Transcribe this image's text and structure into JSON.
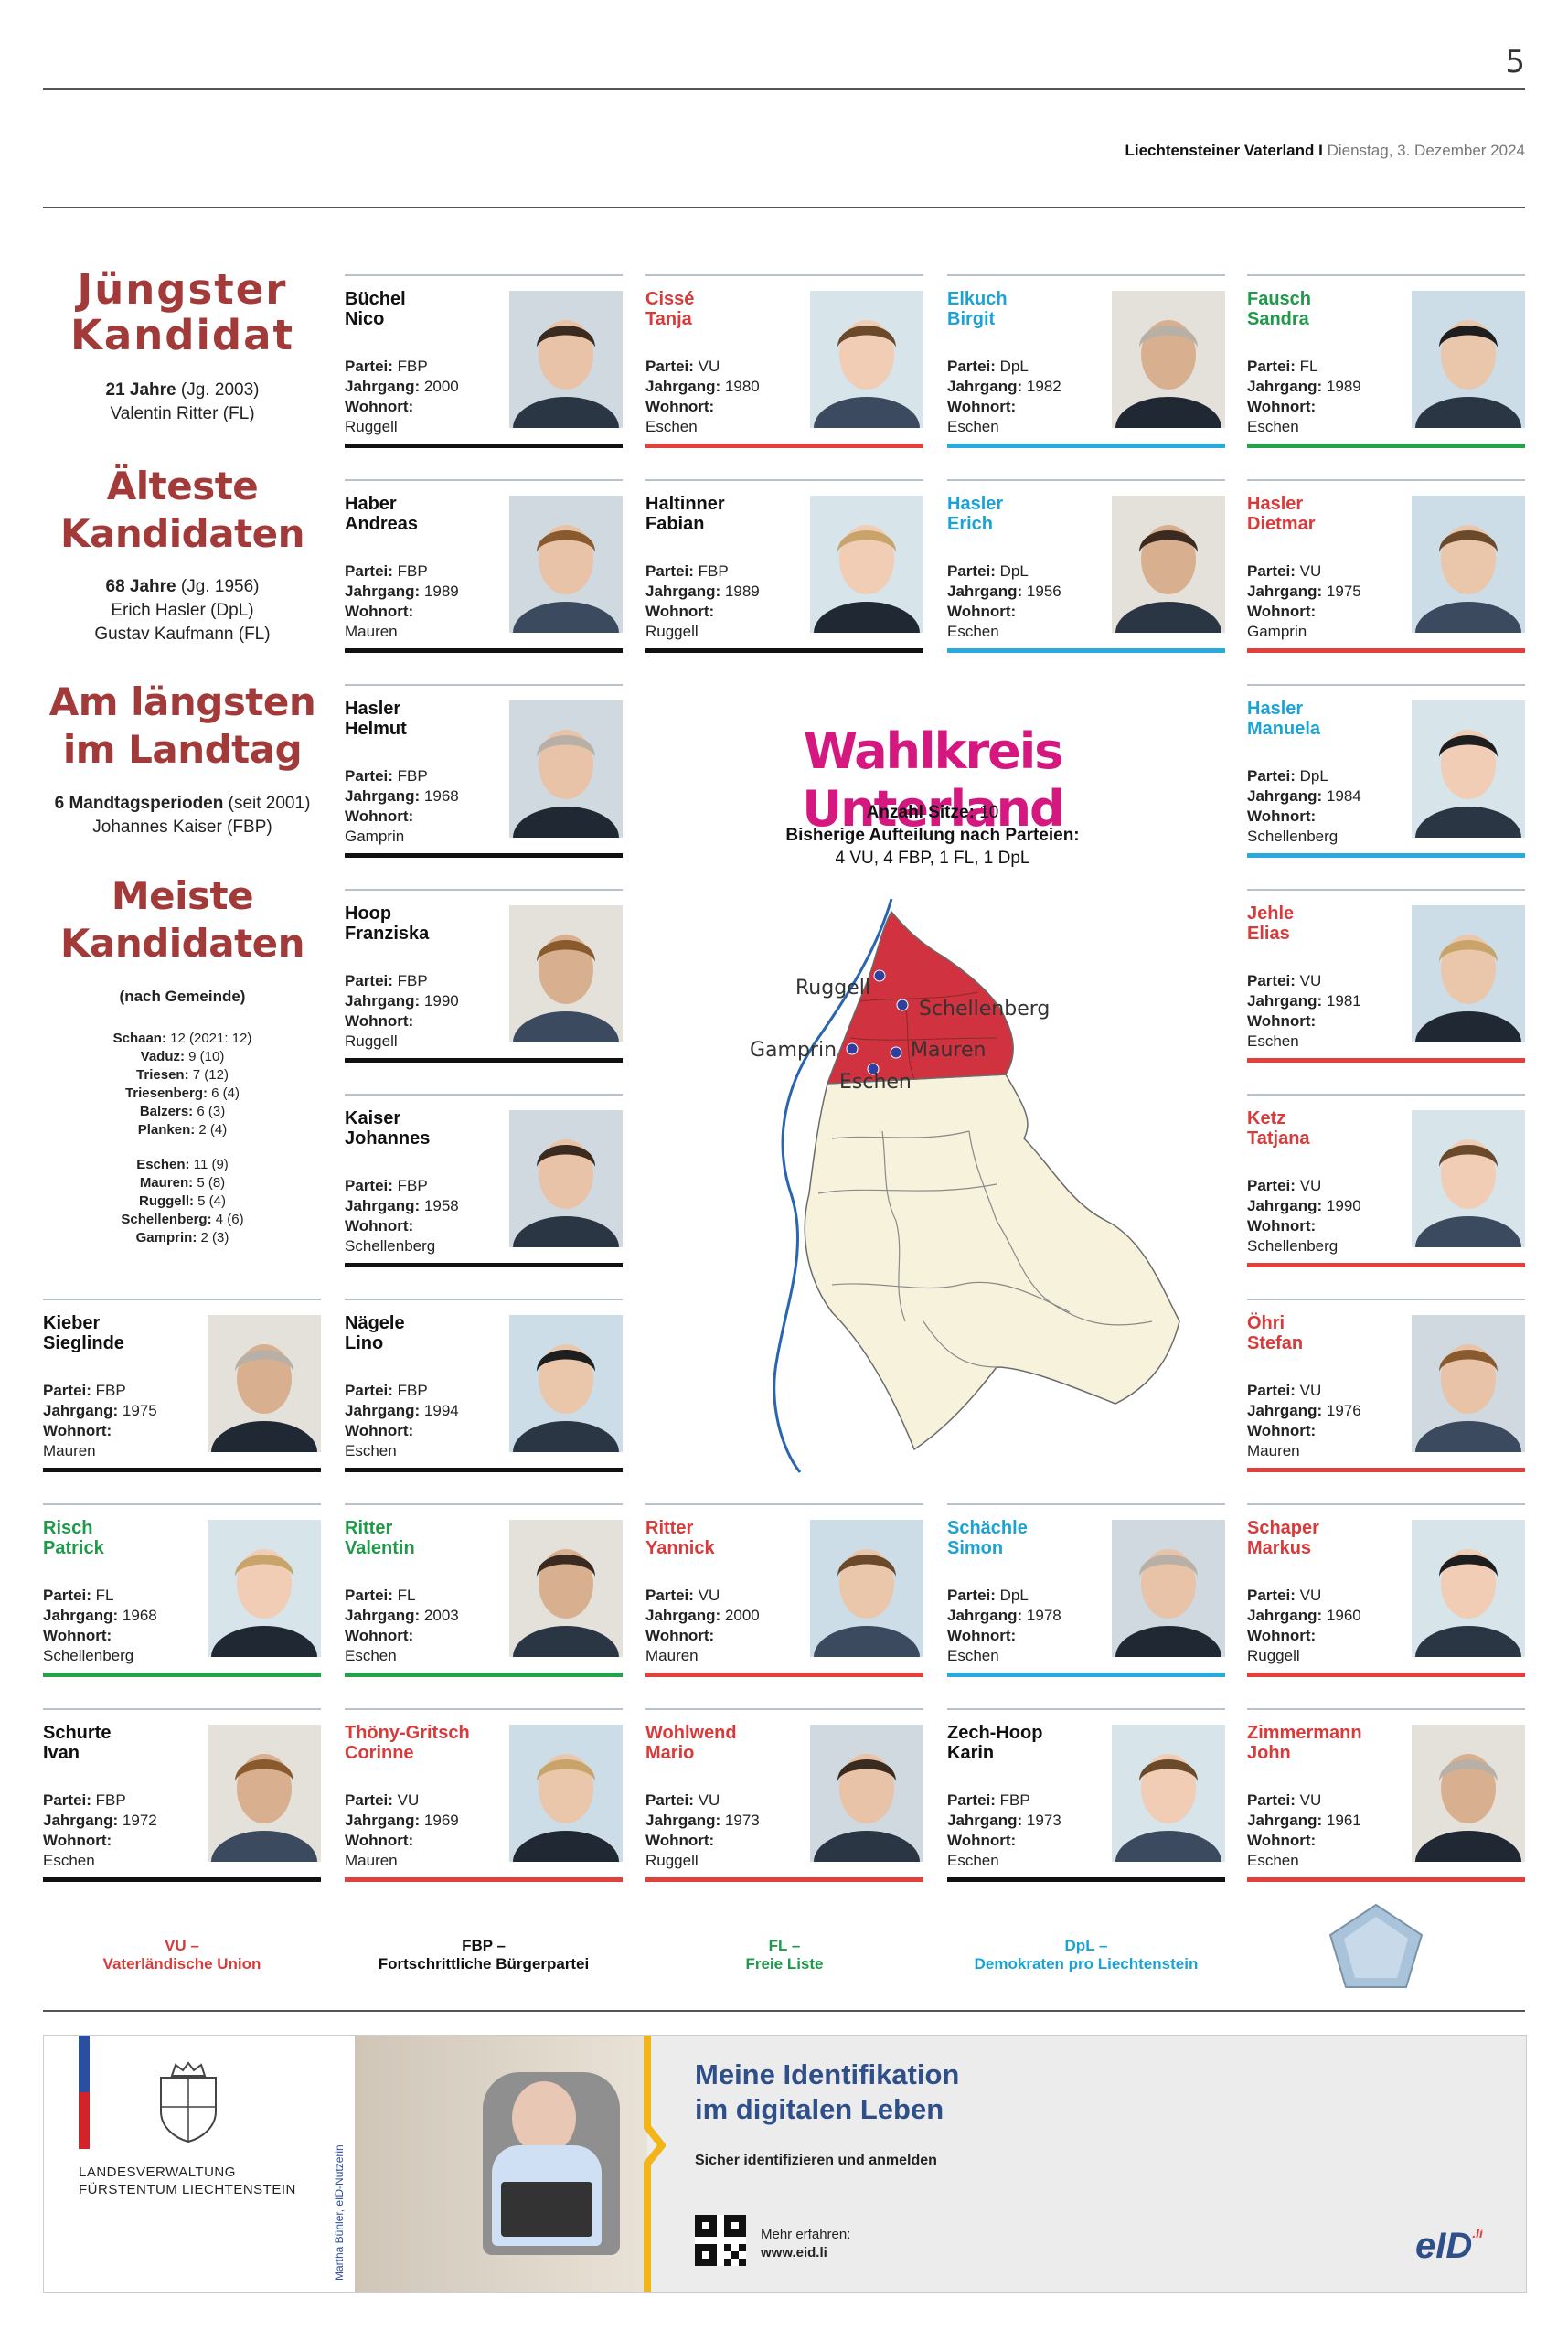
{
  "header": {
    "page_number": "5",
    "newspaper": "Liechtensteiner Vaterland",
    "separator": "I",
    "date": "Dienstag, 3. Dezember 2024"
  },
  "stats": {
    "youngest": {
      "title_line1": "Jüngster",
      "title_line2": "Kandidat",
      "value": "21 Jahre",
      "detail": "(Jg. 2003)",
      "name": "Valentin Ritter (FL)"
    },
    "oldest": {
      "title_line1": "Älteste",
      "title_line2": "Kandidaten",
      "value": "68 Jahre",
      "detail": "(Jg. 1956)",
      "name1": "Erich Hasler (DpL)",
      "name2": "Gustav Kaufmann (FL)"
    },
    "longest": {
      "title_line1": "Am längsten",
      "title_line2": "im Landtag",
      "value": "6 Mandtagsperioden",
      "detail": "(seit 2001)",
      "name": "Johannes Kaiser (FBP)"
    },
    "most": {
      "title_line1": "Meiste",
      "title_line2": "Kandidaten",
      "subtitle": "(nach Gemeinde)",
      "oberland": [
        {
          "name": "Schaan:",
          "value": "12 (2021: 12)"
        },
        {
          "name": "Vaduz:",
          "value": "9 (10)"
        },
        {
          "name": "Triesen:",
          "value": "7 (12)"
        },
        {
          "name": "Triesenberg:",
          "value": "6 (4)"
        },
        {
          "name": "Balzers:",
          "value": "6 (3)"
        },
        {
          "name": "Planken:",
          "value": "2 (4)"
        }
      ],
      "unterland": [
        {
          "name": "Eschen:",
          "value": "11 (9)"
        },
        {
          "name": "Mauren:",
          "value": "5 (8)"
        },
        {
          "name": "Ruggell:",
          "value": "5 (4)"
        },
        {
          "name": "Schellenberg:",
          "value": "4 (6)"
        },
        {
          "name": "Gamprin:",
          "value": "2 (3)"
        }
      ]
    }
  },
  "labels": {
    "partei": "Partei:",
    "jahrgang": "Jahrgang:",
    "wohnort": "Wohnort:"
  },
  "candidates": [
    {
      "last": "Büchel",
      "first": "Nico",
      "party": "FBP",
      "year": "2000",
      "town": "Ruggell"
    },
    {
      "last": "Cissé",
      "first": "Tanja",
      "party": "VU",
      "year": "1980",
      "town": "Eschen"
    },
    {
      "last": "Elkuch",
      "first": "Birgit",
      "party": "DpL",
      "year": "1982",
      "town": "Eschen"
    },
    {
      "last": "Fausch",
      "first": "Sandra",
      "party": "FL",
      "year": "1989",
      "town": "Eschen"
    },
    {
      "last": "Haber",
      "first": "Andreas",
      "party": "FBP",
      "year": "1989",
      "town": "Mauren"
    },
    {
      "last": "Haltinner",
      "first": "Fabian",
      "party": "FBP",
      "year": "1989",
      "town": "Ruggell"
    },
    {
      "last": "Hasler",
      "first": "Erich",
      "party": "DpL",
      "year": "1956",
      "town": "Eschen"
    },
    {
      "last": "Hasler",
      "first": "Dietmar",
      "party": "VU",
      "year": "1975",
      "town": "Gamprin"
    },
    {
      "last": "Hasler",
      "first": "Helmut",
      "party": "FBP",
      "year": "1968",
      "town": "Gamprin"
    },
    {
      "last": "Hasler",
      "first": "Manuela",
      "party": "DpL",
      "year": "1984",
      "town": "Schellenberg"
    },
    {
      "last": "Hoop",
      "first": "Franziska",
      "party": "FBP",
      "year": "1990",
      "town": "Ruggell"
    },
    {
      "last": "Jehle",
      "first": "Elias",
      "party": "VU",
      "year": "1981",
      "town": "Eschen"
    },
    {
      "last": "Kaiser",
      "first": "Johannes",
      "party": "FBP",
      "year": "1958",
      "town": "Schellenberg"
    },
    {
      "last": "Ketz",
      "first": "Tatjana",
      "party": "VU",
      "year": "1990",
      "town": "Schellenberg"
    },
    {
      "last": "Kieber",
      "first": "Sieglinde",
      "party": "FBP",
      "year": "1975",
      "town": "Mauren"
    },
    {
      "last": "Nägele",
      "first": "Lino",
      "party": "FBP",
      "year": "1994",
      "town": "Eschen"
    },
    {
      "last": "Öhri",
      "first": "Stefan",
      "party": "VU",
      "year": "1976",
      "town": "Mauren"
    },
    {
      "last": "Risch",
      "first": "Patrick",
      "party": "FL",
      "year": "1968",
      "town": "Schellenberg"
    },
    {
      "last": "Ritter",
      "first": "Valentin",
      "party": "FL",
      "year": "2003",
      "town": "Eschen"
    },
    {
      "last": "Ritter",
      "first": "Yannick",
      "party": "VU",
      "year": "2000",
      "town": "Mauren"
    },
    {
      "last": "Schächle",
      "first": "Simon",
      "party": "DpL",
      "year": "1978",
      "town": "Eschen"
    },
    {
      "last": "Schaper",
      "first": "Markus",
      "party": "VU",
      "year": "1960",
      "town": "Ruggell"
    },
    {
      "last": "Schurte",
      "first": "Ivan",
      "party": "FBP",
      "year": "1972",
      "town": "Eschen"
    },
    {
      "last": "Thöny-Gritsch",
      "first": "Corinne",
      "party": "VU",
      "year": "1969",
      "town": "Mauren"
    },
    {
      "last": "Wohlwend",
      "first": "Mario",
      "party": "VU",
      "year": "1973",
      "town": "Ruggell"
    },
    {
      "last": "Zech-Hoop",
      "first": "Karin",
      "party": "FBP",
      "year": "1973",
      "town": "Eschen"
    },
    {
      "last": "Zimmermann",
      "first": "John",
      "party": "VU",
      "year": "1961",
      "town": "Eschen"
    }
  ],
  "wahlkreis": {
    "title": "Wahlkreis Unterland",
    "seats_label": "Anzahl Sitze:",
    "seats_value": "10",
    "distribution_label": "Bisherige Aufteilung nach Parteien:",
    "distribution_value": "4 VU, 4 FBP, 1 FL, 1 DpL",
    "map_towns": [
      "Ruggell",
      "Schellenberg",
      "Gamprin",
      "Mauren",
      "Eschen"
    ]
  },
  "legend": [
    {
      "abbr": "VU –",
      "name": "Vaterländische Union",
      "color": "#d93a3a"
    },
    {
      "abbr": "FBP –",
      "name": "Fortschrittliche Bürgerpartei",
      "color": "#111111"
    },
    {
      "abbr": "FL –",
      "name": "Freie Liste",
      "color": "#1f9a4a"
    },
    {
      "abbr": "DpL –",
      "name": "Demokraten pro Liechtenstein",
      "color": "#1ba3d6"
    }
  ],
  "ad": {
    "org_line1": "LANDESVERWALTUNG",
    "org_line2": "FÜRSTENTUM LIECHTENSTEIN",
    "photo_credit": "Martha Bühler, eID-Nutzerin",
    "headline_line1": "Meine Identifikation",
    "headline_line2": "im digitalen Leben",
    "subline": "Sicher identifizieren und anmelden",
    "more_label": "Mehr erfahren:",
    "url": "www.eid.li",
    "logo": "eID",
    "logo_suffix": ".li"
  },
  "colors": {
    "VU": "#e0413a",
    "FBP": "#111111",
    "FL": "#27a04c",
    "DpL": "#2aa9dc",
    "headline": "#a33a3a",
    "wahlkreis": "#d4187f"
  }
}
